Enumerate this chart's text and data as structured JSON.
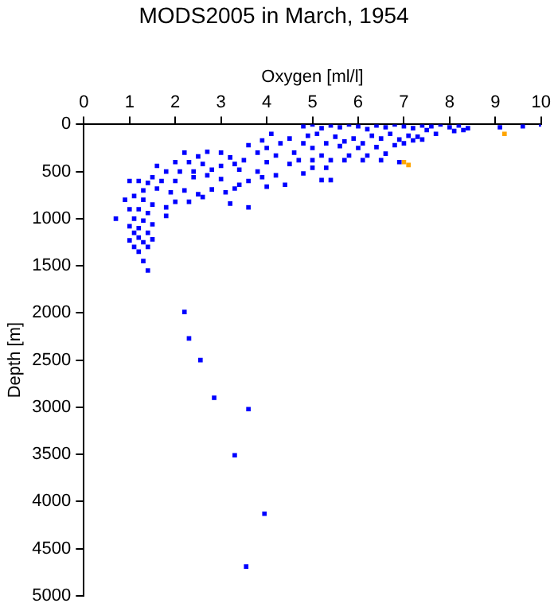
{
  "chart_data": {
    "type": "scatter",
    "title": "MODS2005 in March, 1954",
    "xlabel": "Oxygen [ml/l]",
    "ylabel": "Depth [m]",
    "xlim": [
      0,
      10
    ],
    "xticks": [
      0,
      1,
      2,
      3,
      4,
      5,
      6,
      7,
      8,
      9,
      10
    ],
    "ylim": [
      5000,
      0
    ],
    "yticks": [
      0,
      500,
      1000,
      1500,
      2000,
      2500,
      3000,
      3500,
      4000,
      4500,
      5000
    ],
    "grid": false,
    "legend": false,
    "marker": "square",
    "series": [
      {
        "color": "#0000ff",
        "x": [
          4.8,
          5.0,
          5.2,
          5.4,
          5.6,
          5.8,
          6.0,
          6.2,
          6.4,
          6.6,
          6.8,
          7.0,
          7.2,
          7.4,
          7.6,
          7.8,
          8.0,
          8.2,
          8.4,
          8.3,
          9.1,
          9.6,
          10.0,
          7.5,
          7.1,
          6.7,
          6.3,
          5.9,
          5.5,
          5.1,
          4.9,
          6.5,
          6.9,
          7.3,
          7.7,
          8.1,
          6.1,
          5.7,
          5.3,
          4.8,
          5.0,
          5.6,
          6.0,
          6.4,
          6.8,
          7.0,
          7.2,
          7.4,
          4.5,
          4.3,
          4.0,
          4.6,
          5.2,
          5.8,
          6.2,
          6.6,
          4.2,
          3.8,
          3.6,
          3.9,
          4.1,
          4.7,
          5.0,
          5.4,
          5.7,
          6.1,
          6.5,
          6.9,
          5.3,
          5.0,
          4.5,
          4.0,
          3.5,
          3.2,
          3.0,
          2.7,
          2.5,
          2.2,
          3.3,
          3.0,
          2.6,
          2.3,
          2.0,
          1.8,
          1.6,
          2.1,
          2.4,
          2.8,
          3.4,
          3.8,
          4.2,
          4.8,
          5.2,
          5.4,
          4.4,
          4.0,
          3.9,
          3.6,
          3.4,
          3.0,
          2.7,
          2.4,
          2.0,
          1.7,
          1.5,
          1.4,
          1.2,
          1.0,
          1.3,
          1.6,
          1.9,
          2.2,
          2.5,
          2.8,
          3.1,
          3.3,
          3.2,
          3.6,
          2.6,
          2.3,
          2.0,
          1.8,
          1.5,
          1.3,
          1.1,
          0.9,
          1.0,
          1.2,
          1.4,
          1.8,
          0.7,
          1.1,
          1.3,
          1.0,
          1.2,
          1.5,
          1.4,
          1.1,
          1.2,
          1.0,
          1.3,
          1.5,
          1.1,
          1.4,
          1.2,
          1.3,
          1.4,
          2.2,
          2.3,
          2.55,
          2.85,
          3.6,
          3.3,
          3.95,
          3.55
        ],
        "values": [
          20,
          0,
          40,
          10,
          30,
          0,
          20,
          50,
          10,
          30,
          0,
          20,
          40,
          10,
          20,
          0,
          30,
          10,
          40,
          60,
          30,
          20,
          0,
          60,
          120,
          100,
          120,
          150,
          130,
          100,
          120,
          150,
          160,
          130,
          100,
          70,
          200,
          180,
          200,
          200,
          250,
          230,
          250,
          240,
          220,
          200,
          170,
          160,
          150,
          200,
          250,
          300,
          330,
          330,
          330,
          310,
          330,
          300,
          220,
          170,
          100,
          380,
          380,
          380,
          380,
          380,
          380,
          400,
          460,
          460,
          420,
          400,
          380,
          350,
          300,
          290,
          340,
          300,
          420,
          440,
          420,
          400,
          400,
          500,
          440,
          500,
          500,
          480,
          480,
          500,
          540,
          520,
          590,
          590,
          640,
          660,
          560,
          600,
          640,
          580,
          540,
          560,
          600,
          600,
          560,
          620,
          600,
          600,
          700,
          680,
          720,
          700,
          740,
          690,
          720,
          680,
          840,
          880,
          770,
          820,
          820,
          880,
          850,
          800,
          760,
          800,
          900,
          900,
          940,
          970,
          1000,
          1000,
          1020,
          1080,
          1100,
          1060,
          1150,
          1150,
          1200,
          1230,
          1250,
          1220,
          1300,
          1300,
          1350,
          1450,
          1550,
          1990,
          2270,
          2500,
          2900,
          3020,
          3510,
          4130,
          4690
        ]
      },
      {
        "color": "#ffa500",
        "x": [
          9.2,
          7.0,
          7.1
        ],
        "values": [
          100,
          400,
          430
        ]
      }
    ]
  }
}
